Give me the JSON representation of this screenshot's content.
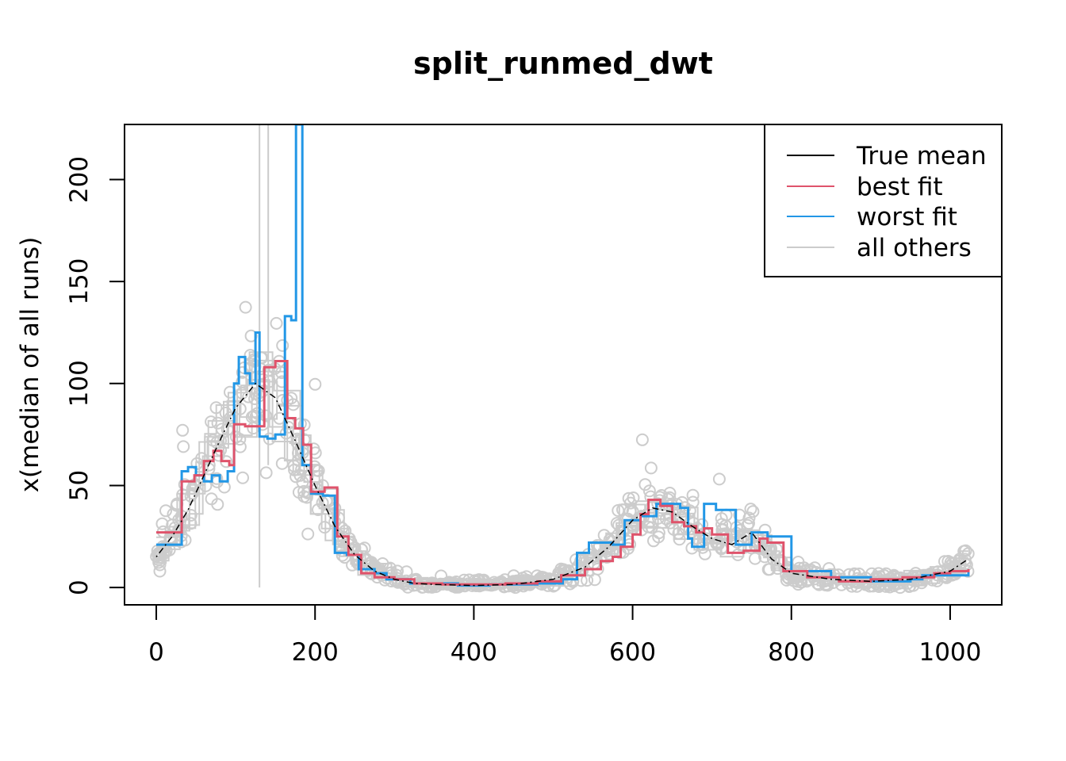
{
  "chart_data": {
    "type": "line",
    "title": "split_runmed_dwt",
    "xlabel": "",
    "ylabel": "x(median of all runs)",
    "xlim": [
      -40,
      1065
    ],
    "ylim": [
      -8.5,
      227
    ],
    "x_ticks": [
      0,
      200,
      400,
      600,
      800,
      1000
    ],
    "y_ticks": [
      0,
      50,
      100,
      150,
      200
    ],
    "legend": {
      "position": "top-right",
      "entries": [
        {
          "label": "True mean",
          "color": "#000000"
        },
        {
          "label": "best fit",
          "color": "#DF536B"
        },
        {
          "label": "worst fit",
          "color": "#2297E6"
        },
        {
          "label": "all others",
          "color": "#CCCCCC"
        }
      ]
    },
    "series": [
      {
        "name": "True mean",
        "color": "#000000",
        "style": "dashdot",
        "x": [
          0,
          20,
          40,
          60,
          80,
          100,
          125,
          150,
          175,
          200,
          225,
          250,
          275,
          300,
          325,
          350,
          400,
          450,
          500,
          540,
          570,
          600,
          625,
          650,
          675,
          700,
          725,
          750,
          775,
          800,
          850,
          900,
          950,
          1000,
          1023
        ],
        "y": [
          15,
          25,
          38,
          55,
          72,
          88,
          100,
          93,
          72,
          50,
          30,
          16,
          8,
          4,
          2,
          1.5,
          1,
          1.5,
          4,
          10,
          20,
          33,
          39,
          37,
          30,
          24,
          21,
          27,
          14,
          7,
          4,
          3,
          4,
          8,
          14
        ]
      },
      {
        "name": "best fit",
        "color": "#DF536B",
        "style": "step",
        "x": [
          0,
          32,
          48,
          60,
          72,
          82,
          92,
          98,
          112,
          128,
          136,
          150,
          165,
          175,
          185,
          195,
          212,
          228,
          242,
          258,
          275,
          300,
          325,
          360,
          400,
          440,
          480,
          510,
          540,
          560,
          575,
          585,
          600,
          610,
          620,
          635,
          650,
          665,
          680,
          690,
          700,
          720,
          740,
          760,
          770,
          790,
          820,
          860,
          900,
          940,
          980,
          1000,
          1023
        ],
        "y": [
          27,
          52,
          55,
          62,
          67,
          62,
          60,
          80,
          79,
          79,
          108,
          111,
          83,
          78,
          70,
          47,
          49,
          25,
          16,
          7,
          5,
          4,
          2,
          1.5,
          1.5,
          2,
          3,
          6,
          9,
          13,
          15,
          20,
          26,
          36,
          43,
          40,
          32,
          30,
          27,
          29,
          26,
          17,
          18,
          24,
          22,
          8,
          5,
          3,
          4,
          5,
          7,
          8,
          9
        ]
      },
      {
        "name": "worst fit",
        "color": "#2297E6",
        "style": "step",
        "x": [
          0,
          32,
          40,
          50,
          60,
          70,
          80,
          90,
          98,
          104,
          112,
          118,
          125,
          130,
          140,
          150,
          162,
          170,
          176,
          184,
          195,
          210,
          225,
          240,
          255,
          275,
          290,
          320,
          380,
          420,
          480,
          512,
          530,
          545,
          575,
          590,
          610,
          630,
          660,
          670,
          675,
          690,
          705,
          730,
          750,
          770,
          800,
          850,
          900,
          950,
          965,
          1023
        ],
        "y": [
          21,
          57,
          59,
          55,
          52,
          55,
          52,
          57,
          100,
          113,
          105,
          100,
          125,
          74,
          73,
          75,
          133,
          131,
          227,
          60,
          46,
          45,
          17,
          16,
          9,
          7,
          4,
          2,
          1,
          1.5,
          2,
          4,
          17,
          22,
          21,
          33,
          35,
          41,
          39,
          24,
          20,
          41,
          38,
          21,
          27,
          25,
          8,
          5,
          3,
          4,
          6,
          8
        ]
      }
    ],
    "all_others": {
      "color": "#CCCCCC",
      "description_points": "light gray circles and step lines around the true mean curve"
    }
  }
}
